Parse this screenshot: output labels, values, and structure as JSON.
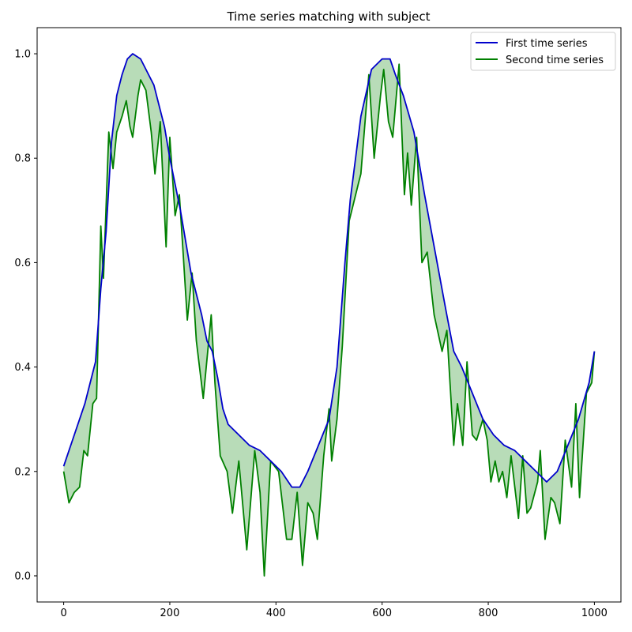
{
  "chart_data": {
    "type": "line",
    "title": "Time series matching with subject",
    "xlabel": "",
    "ylabel": "",
    "xlim": [
      -50,
      1050
    ],
    "ylim": [
      -0.05,
      1.05
    ],
    "x_ticks": [
      0,
      200,
      400,
      600,
      800,
      1000
    ],
    "y_ticks": [
      0.0,
      0.2,
      0.4,
      0.6,
      0.8,
      1.0
    ],
    "x_tick_labels": [
      "0",
      "200",
      "400",
      "600",
      "800",
      "1000"
    ],
    "y_tick_labels": [
      "0.0",
      "0.2",
      "0.4",
      "0.6",
      "0.8",
      "1.0"
    ],
    "grid": false,
    "legend_position": "top-right",
    "fill_between": {
      "color": "#008000",
      "opacity": 0.28
    },
    "series": [
      {
        "name": "First time series",
        "color": "#0000cc",
        "points": [
          [
            0,
            0.21
          ],
          [
            20,
            0.27
          ],
          [
            40,
            0.33
          ],
          [
            60,
            0.41
          ],
          [
            70,
            0.55
          ],
          [
            80,
            0.66
          ],
          [
            90,
            0.83
          ],
          [
            100,
            0.92
          ],
          [
            110,
            0.96
          ],
          [
            120,
            0.99
          ],
          [
            130,
            1.0
          ],
          [
            145,
            0.99
          ],
          [
            160,
            0.96
          ],
          [
            170,
            0.94
          ],
          [
            180,
            0.9
          ],
          [
            190,
            0.86
          ],
          [
            200,
            0.8
          ],
          [
            210,
            0.75
          ],
          [
            220,
            0.7
          ],
          [
            240,
            0.58
          ],
          [
            260,
            0.5
          ],
          [
            270,
            0.45
          ],
          [
            280,
            0.43
          ],
          [
            290,
            0.38
          ],
          [
            300,
            0.32
          ],
          [
            310,
            0.29
          ],
          [
            330,
            0.27
          ],
          [
            350,
            0.25
          ],
          [
            370,
            0.24
          ],
          [
            390,
            0.22
          ],
          [
            410,
            0.2
          ],
          [
            430,
            0.17
          ],
          [
            445,
            0.17
          ],
          [
            460,
            0.2
          ],
          [
            480,
            0.25
          ],
          [
            500,
            0.3
          ],
          [
            515,
            0.4
          ],
          [
            530,
            0.6
          ],
          [
            540,
            0.72
          ],
          [
            560,
            0.88
          ],
          [
            580,
            0.97
          ],
          [
            600,
            0.99
          ],
          [
            615,
            0.99
          ],
          [
            625,
            0.96
          ],
          [
            640,
            0.92
          ],
          [
            660,
            0.85
          ],
          [
            680,
            0.73
          ],
          [
            700,
            0.62
          ],
          [
            720,
            0.51
          ],
          [
            735,
            0.43
          ],
          [
            750,
            0.4
          ],
          [
            770,
            0.35
          ],
          [
            790,
            0.3
          ],
          [
            810,
            0.27
          ],
          [
            830,
            0.25
          ],
          [
            850,
            0.24
          ],
          [
            870,
            0.22
          ],
          [
            890,
            0.2
          ],
          [
            910,
            0.18
          ],
          [
            930,
            0.2
          ],
          [
            950,
            0.25
          ],
          [
            970,
            0.3
          ],
          [
            990,
            0.37
          ],
          [
            1000,
            0.43
          ]
        ]
      },
      {
        "name": "Second time series",
        "color": "#008000",
        "points": [
          [
            0,
            0.2
          ],
          [
            10,
            0.14
          ],
          [
            20,
            0.16
          ],
          [
            30,
            0.17
          ],
          [
            38,
            0.24
          ],
          [
            45,
            0.23
          ],
          [
            55,
            0.33
          ],
          [
            62,
            0.34
          ],
          [
            70,
            0.67
          ],
          [
            75,
            0.57
          ],
          [
            85,
            0.85
          ],
          [
            93,
            0.78
          ],
          [
            100,
            0.85
          ],
          [
            110,
            0.88
          ],
          [
            118,
            0.91
          ],
          [
            125,
            0.86
          ],
          [
            130,
            0.84
          ],
          [
            140,
            0.92
          ],
          [
            145,
            0.95
          ],
          [
            155,
            0.93
          ],
          [
            165,
            0.85
          ],
          [
            172,
            0.77
          ],
          [
            182,
            0.87
          ],
          [
            193,
            0.63
          ],
          [
            200,
            0.84
          ],
          [
            210,
            0.69
          ],
          [
            218,
            0.73
          ],
          [
            225,
            0.62
          ],
          [
            233,
            0.49
          ],
          [
            242,
            0.58
          ],
          [
            250,
            0.45
          ],
          [
            263,
            0.34
          ],
          [
            278,
            0.5
          ],
          [
            285,
            0.37
          ],
          [
            295,
            0.23
          ],
          [
            308,
            0.2
          ],
          [
            318,
            0.12
          ],
          [
            330,
            0.22
          ],
          [
            345,
            0.05
          ],
          [
            360,
            0.24
          ],
          [
            370,
            0.16
          ],
          [
            378,
            0.0
          ],
          [
            390,
            0.22
          ],
          [
            405,
            0.2
          ],
          [
            420,
            0.07
          ],
          [
            430,
            0.07
          ],
          [
            440,
            0.16
          ],
          [
            450,
            0.02
          ],
          [
            460,
            0.14
          ],
          [
            470,
            0.12
          ],
          [
            478,
            0.07
          ],
          [
            490,
            0.23
          ],
          [
            500,
            0.32
          ],
          [
            505,
            0.22
          ],
          [
            515,
            0.3
          ],
          [
            525,
            0.44
          ],
          [
            538,
            0.68
          ],
          [
            555,
            0.75
          ],
          [
            560,
            0.77
          ],
          [
            575,
            0.96
          ],
          [
            585,
            0.8
          ],
          [
            597,
            0.92
          ],
          [
            603,
            0.97
          ],
          [
            612,
            0.87
          ],
          [
            620,
            0.84
          ],
          [
            632,
            0.98
          ],
          [
            642,
            0.73
          ],
          [
            648,
            0.81
          ],
          [
            655,
            0.71
          ],
          [
            665,
            0.84
          ],
          [
            675,
            0.6
          ],
          [
            685,
            0.62
          ],
          [
            698,
            0.5
          ],
          [
            713,
            0.43
          ],
          [
            722,
            0.47
          ],
          [
            735,
            0.25
          ],
          [
            742,
            0.33
          ],
          [
            752,
            0.25
          ],
          [
            760,
            0.41
          ],
          [
            770,
            0.27
          ],
          [
            778,
            0.26
          ],
          [
            790,
            0.3
          ],
          [
            798,
            0.26
          ],
          [
            805,
            0.18
          ],
          [
            813,
            0.22
          ],
          [
            820,
            0.18
          ],
          [
            827,
            0.2
          ],
          [
            835,
            0.15
          ],
          [
            843,
            0.23
          ],
          [
            850,
            0.17
          ],
          [
            857,
            0.11
          ],
          [
            865,
            0.23
          ],
          [
            873,
            0.12
          ],
          [
            880,
            0.13
          ],
          [
            893,
            0.18
          ],
          [
            898,
            0.24
          ],
          [
            907,
            0.07
          ],
          [
            918,
            0.15
          ],
          [
            925,
            0.14
          ],
          [
            935,
            0.1
          ],
          [
            945,
            0.26
          ],
          [
            957,
            0.17
          ],
          [
            965,
            0.33
          ],
          [
            972,
            0.15
          ],
          [
            985,
            0.35
          ],
          [
            995,
            0.37
          ],
          [
            1000,
            0.43
          ]
        ]
      }
    ]
  }
}
